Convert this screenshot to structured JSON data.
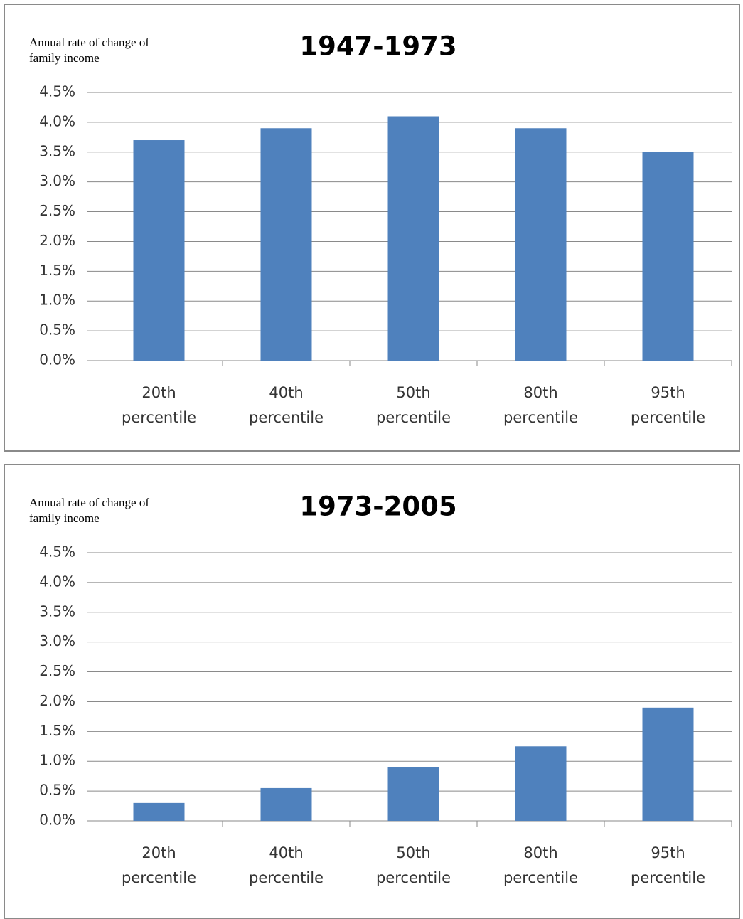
{
  "chart_data": [
    {
      "type": "bar",
      "title": "1947-1973",
      "ylabel": "Annual rate of change of family income",
      "categories": [
        "20th percentile",
        "40th percentile",
        "50th percentile",
        "80th percentile",
        "95th percentile"
      ],
      "values": [
        3.7,
        3.9,
        4.1,
        3.9,
        3.5
      ],
      "color": "#4f81bd",
      "ylim": [
        0,
        4.5
      ],
      "yticks": [
        {
          "value": 0,
          "label": "0.0%"
        },
        {
          "value": 0.5,
          "label": "0.5%"
        },
        {
          "value": 1,
          "label": "1.0%"
        },
        {
          "value": 1.5,
          "label": "1.5%"
        },
        {
          "value": 2,
          "label": "2.0%"
        },
        {
          "value": 2.5,
          "label": "2.5%"
        },
        {
          "value": 3,
          "label": "3.0%"
        },
        {
          "value": 3.5,
          "label": "3.5%"
        },
        {
          "value": 4,
          "label": "4.0%"
        },
        {
          "value": 4.5,
          "label": "4.5%"
        }
      ],
      "grid": true
    },
    {
      "type": "bar",
      "title": "1973-2005",
      "ylabel": "Annual rate of change of family income",
      "categories": [
        "20th percentile",
        "40th percentile",
        "50th percentile",
        "80th percentile",
        "95th percentile"
      ],
      "values": [
        0.3,
        0.55,
        0.9,
        1.25,
        1.9
      ],
      "color": "#4f81bd",
      "ylim": [
        0,
        4.5
      ],
      "yticks": [
        {
          "value": 0,
          "label": "0.0%"
        },
        {
          "value": 0.5,
          "label": "0.5%"
        },
        {
          "value": 1,
          "label": "1.0%"
        },
        {
          "value": 1.5,
          "label": "1.5%"
        },
        {
          "value": 2,
          "label": "2.0%"
        },
        {
          "value": 2.5,
          "label": "2.5%"
        },
        {
          "value": 3,
          "label": "3.0%"
        },
        {
          "value": 3.5,
          "label": "3.5%"
        },
        {
          "value": 4,
          "label": "4.0%"
        },
        {
          "value": 4.5,
          "label": "4.5%"
        }
      ],
      "grid": true
    }
  ]
}
